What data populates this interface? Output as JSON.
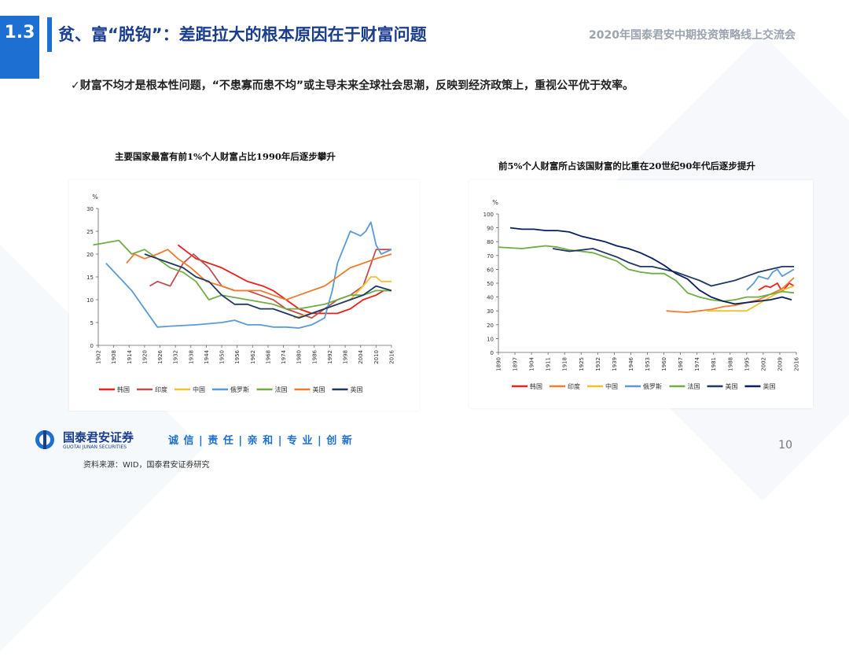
{
  "header": {
    "section_number": "1.3",
    "title": "贫、富“脱钩”：差距拉大的根本原因在于财富问题",
    "event": "2020年国泰君安中期投资策略线上交流会"
  },
  "bullet": "✓财富不均才是根本性问题，“不患寡而患不均”或主导未来全球社会思潮，反映到经济政策上，重视公平优于效率。",
  "colors": {
    "accent": "#1d6fd1",
    "title": "#1a3d8f"
  },
  "chart_data": [
    {
      "type": "line",
      "title": "主要国家最富有前1%个人财富占比1990年后逐步攀升",
      "ylabel": "%",
      "ylim": [
        0,
        30
      ],
      "yticks": [
        0,
        5,
        10,
        15,
        20,
        25,
        30
      ],
      "xlim": [
        1902,
        2016
      ],
      "xticks": [
        1902,
        1908,
        1914,
        1920,
        1926,
        1932,
        1938,
        1944,
        1950,
        1956,
        1962,
        1968,
        1974,
        1980,
        1986,
        1992,
        1998,
        2004,
        2010,
        2016
      ],
      "legend_position": "bottom",
      "series": [
        {
          "name": "韩国",
          "color": "#e8221c",
          "x": [
            1933,
            1940,
            1950,
            1960,
            1966,
            1970,
            1975,
            1980,
            1985,
            1990,
            1995,
            2000,
            2005,
            2010,
            2013,
            2016
          ],
          "y": [
            22,
            19,
            17,
            14,
            13,
            12,
            10,
            8,
            7,
            7,
            7,
            8,
            10,
            11,
            12,
            12
          ]
        },
        {
          "name": "印度",
          "color": "#c0504d",
          "x": [
            1922,
            1925,
            1930,
            1935,
            1939,
            1945,
            1950,
            1955,
            1960,
            1965,
            1970,
            1975,
            1980,
            1985,
            1990,
            1995,
            2000,
            2005,
            2010,
            2016
          ],
          "y": [
            13,
            14,
            13,
            18,
            20,
            17,
            13,
            12,
            12,
            11,
            10,
            8,
            7,
            6,
            8,
            10,
            11,
            13,
            21,
            21
          ]
        },
        {
          "name": "中国",
          "color": "#f2c12e",
          "x": [
            1978,
            1985,
            1990,
            1995,
            2000,
            2005,
            2008,
            2010,
            2012,
            2014,
            2016
          ],
          "y": [
            6,
            7,
            8,
            9,
            10,
            13,
            15,
            15,
            14,
            14,
            14
          ]
        },
        {
          "name": "俄罗斯",
          "color": "#5b9bd5",
          "x": [
            1905,
            1915,
            1925,
            1930,
            1940,
            1950,
            1955,
            1960,
            1965,
            1970,
            1975,
            1980,
            1985,
            1990,
            1993,
            1995,
            2000,
            2004,
            2006,
            2008,
            2010,
            2012,
            2016
          ],
          "y": [
            18,
            12,
            4,
            4.2,
            4.5,
            5,
            5.5,
            4.5,
            4.5,
            4,
            4,
            3.8,
            4.5,
            6,
            12,
            18,
            25,
            24,
            25,
            27,
            22,
            20,
            21
          ]
        },
        {
          "name": "法国",
          "color": "#70ad47",
          "x": [
            1900,
            1905,
            1910,
            1915,
            1920,
            1925,
            1930,
            1935,
            1940,
            1945,
            1950,
            1955,
            1960,
            1965,
            1970,
            1975,
            1980,
            1985,
            1990,
            1995,
            2000,
            2005,
            2010,
            2016
          ],
          "y": [
            22,
            22.5,
            23,
            20,
            21,
            19,
            17,
            16,
            14,
            10,
            11,
            10.5,
            10,
            9.5,
            9,
            8,
            8,
            8.5,
            9,
            10,
            11,
            11,
            12,
            12
          ]
        },
        {
          "name": "美国",
          "color": "#ed7d31",
          "x": [
            1913,
            1916,
            1920,
            1925,
            1929,
            1933,
            1938,
            1944,
            1950,
            1955,
            1960,
            1965,
            1970,
            1975,
            1980,
            1985,
            1990,
            1995,
            2000,
            2005,
            2010,
            2016
          ],
          "y": [
            18,
            20,
            19,
            20,
            21,
            19,
            17,
            14,
            13,
            12,
            12,
            12,
            11,
            10,
            11,
            12,
            13,
            15,
            17,
            18,
            19,
            20
          ]
        },
        {
          "name": "英国",
          "color": "#1f3864",
          "x": [
            1920,
            1925,
            1930,
            1935,
            1940,
            1945,
            1950,
            1955,
            1960,
            1965,
            1970,
            1975,
            1980,
            1985,
            1990,
            1995,
            2000,
            2005,
            2010,
            2016
          ],
          "y": [
            20,
            19,
            18,
            17,
            15,
            14,
            11,
            9,
            9,
            8,
            8,
            7,
            6,
            7,
            8,
            9,
            10,
            11,
            13,
            12
          ]
        }
      ]
    },
    {
      "type": "line",
      "title": "前5%个人财富所占该国财富的比重在20世纪90年代后逐步提升",
      "ylabel": "%",
      "ylim": [
        0,
        100
      ],
      "yticks": [
        0,
        10,
        20,
        30,
        40,
        50,
        60,
        70,
        80,
        90,
        100
      ],
      "xlim": [
        1890,
        2016
      ],
      "xticks": [
        1890,
        1897,
        1904,
        1911,
        1918,
        1925,
        1932,
        1939,
        1946,
        1953,
        1960,
        1967,
        1974,
        1981,
        1988,
        1995,
        2002,
        2009,
        2016
      ],
      "legend_position": "bottom",
      "series": [
        {
          "name": "韩国",
          "color": "#e8221c",
          "x": [
            2000,
            2003,
            2005,
            2008,
            2010,
            2013,
            2015
          ],
          "y": [
            45,
            48,
            47,
            50,
            44,
            50,
            48
          ]
        },
        {
          "name": "印度",
          "color": "#ed7d31",
          "x": [
            1961,
            1965,
            1970,
            1975,
            1980,
            1985,
            1990,
            1995,
            2000,
            2005,
            2010,
            2015
          ],
          "y": [
            30,
            29.5,
            29,
            30,
            31,
            33,
            34,
            36,
            38,
            42,
            46,
            54
          ]
        },
        {
          "name": "中国",
          "color": "#f2c12e",
          "x": [
            1978,
            1985,
            1990,
            1995,
            2000,
            2005,
            2010,
            2015
          ],
          "y": [
            30,
            30,
            30,
            30,
            35,
            40,
            45,
            48
          ]
        },
        {
          "name": "俄罗斯",
          "color": "#5b9bd5",
          "x": [
            1995,
            1998,
            2000,
            2004,
            2006,
            2008,
            2010,
            2013,
            2015
          ],
          "y": [
            45,
            50,
            55,
            53,
            58,
            60,
            55,
            58,
            60
          ]
        },
        {
          "name": "法国",
          "color": "#70ad47",
          "x": [
            1890,
            1900,
            1905,
            1910,
            1915,
            1920,
            1925,
            1930,
            1935,
            1940,
            1945,
            1950,
            1955,
            1960,
            1965,
            1970,
            1975,
            1980,
            1985,
            1990,
            1995,
            2000,
            2005,
            2010,
            2015
          ],
          "y": [
            76,
            75,
            76,
            77,
            76,
            74,
            73,
            72,
            69,
            66,
            60,
            58,
            57,
            57,
            52,
            43,
            40,
            38,
            37,
            38,
            40,
            40,
            42,
            44,
            43
          ]
        },
        {
          "name": "美国",
          "color": "#1f3864",
          "x": [
            1913,
            1920,
            1925,
            1930,
            1935,
            1940,
            1945,
            1950,
            1955,
            1960,
            1965,
            1970,
            1975,
            1980,
            1985,
            1990,
            1995,
            2000,
            2005,
            2010,
            2015
          ],
          "y": [
            75,
            73,
            74,
            75,
            72,
            69,
            65,
            62,
            62,
            60,
            58,
            55,
            52,
            48,
            50,
            52,
            55,
            58,
            60,
            62,
            62
          ]
        },
        {
          "name": "英国",
          "color": "#0a1f5c",
          "x": [
            1895,
            1900,
            1905,
            1910,
            1915,
            1920,
            1925,
            1930,
            1935,
            1940,
            1945,
            1950,
            1955,
            1960,
            1965,
            1970,
            1975,
            1980,
            1985,
            1990,
            1995,
            2000,
            2005,
            2010,
            2014
          ],
          "y": [
            90,
            89,
            89,
            88,
            88,
            87,
            84,
            82,
            80,
            77,
            75,
            72,
            68,
            63,
            57,
            53,
            45,
            40,
            37,
            35,
            36,
            37,
            38,
            40,
            38
          ]
        }
      ]
    }
  ],
  "footer": {
    "org_name": "国泰君安证券",
    "org_name_en": "GUOTAI JUNAN SECURITIES",
    "motto": "诚 信 | 责 任 | 亲 和 | 专 业 | 创 新",
    "page_number": "10",
    "source": "资料来源：WID，国泰君安证券研究"
  }
}
